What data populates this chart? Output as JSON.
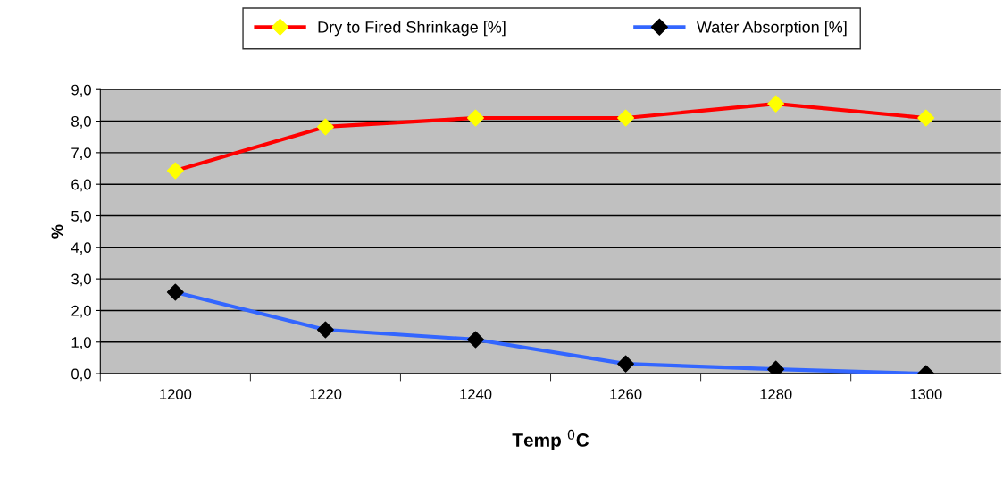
{
  "chart_data": {
    "type": "line",
    "xlabel": "Temp $^{0}$C",
    "ylabel": "%",
    "categories": [
      "1200",
      "1220",
      "1240",
      "1260",
      "1280",
      "1300"
    ],
    "series": [
      {
        "name": "Dry to Fired Shrinkage [%]",
        "color": "#ff0000",
        "colors": [
          "#ffff00",
          "#ffff00",
          "#ffff00",
          "#ffff00",
          "#ffff00",
          "#ffff00"
        ],
        "values": [
          6.43,
          7.82,
          8.1,
          8.1,
          8.55,
          8.1
        ]
      },
      {
        "name": "Water Absorption [%]",
        "color": "#3366ff",
        "colors": [
          "#000000",
          "#000000",
          "#000000",
          "#000000",
          "#000000",
          "#000000"
        ],
        "values": [
          2.58,
          1.39,
          1.08,
          0.31,
          0.14,
          0.0
        ]
      }
    ],
    "ylim": [
      0,
      9
    ],
    "yticks": [
      {
        "value": 0,
        "label": "0,0"
      },
      {
        "value": 1,
        "label": "1,0"
      },
      {
        "value": 2,
        "label": "2,0"
      },
      {
        "value": 3,
        "label": "3,0"
      },
      {
        "value": 4,
        "label": "4,0"
      },
      {
        "value": 5,
        "label": "5,0"
      },
      {
        "value": 6,
        "label": "6,0"
      },
      {
        "value": 7,
        "label": "7,0"
      },
      {
        "value": 8,
        "label": "8,0"
      },
      {
        "value": 9,
        "label": "9,0"
      }
    ],
    "grid": "y",
    "legend": "top",
    "marker": "diamond",
    "line_style": "solid"
  }
}
